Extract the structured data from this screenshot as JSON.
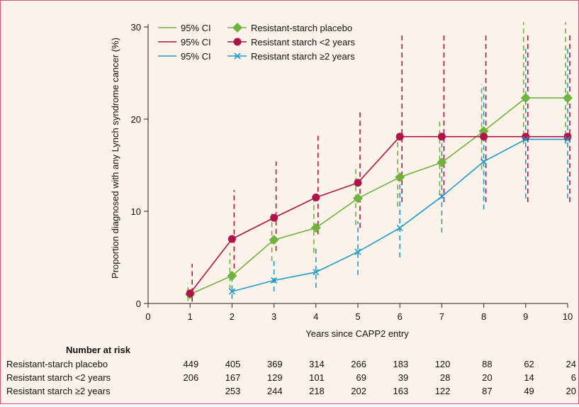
{
  "chart_data": {
    "type": "line",
    "xlabel": "Years since CAPP2 entry",
    "ylabel": "Proportion diagnosed with any Lynch syndrome cancer (%)",
    "xlim": [
      0,
      10
    ],
    "ylim": [
      0,
      30
    ],
    "x_ticks": [
      0,
      1,
      2,
      3,
      4,
      5,
      6,
      7,
      8,
      9,
      10
    ],
    "y_ticks": [
      0,
      10,
      20,
      30
    ],
    "grid": false,
    "legend_position": "top-left",
    "legend": {
      "ci_label": "95% CI"
    },
    "series": [
      {
        "name": "Resistant-starch placebo",
        "color": "#6fb23c",
        "marker": "diamond",
        "x": [
          1,
          2,
          3,
          4,
          5,
          6,
          7,
          8,
          9,
          10
        ],
        "y": [
          1.0,
          3.0,
          6.9,
          8.2,
          11.4,
          13.7,
          15.3,
          18.7,
          22.3,
          22.3
        ],
        "ci_lower": [
          0.3,
          1.5,
          4.6,
          5.5,
          8.5,
          10.5,
          11.8,
          14.5,
          17.3,
          17.3
        ],
        "ci_upper": [
          2.2,
          5.5,
          10.0,
          11.8,
          15.0,
          17.5,
          20.0,
          23.8,
          30.5,
          30.5
        ]
      },
      {
        "name": "Resistant starch <2 years",
        "color": "#b0124a",
        "marker": "circle",
        "x": [
          1,
          2,
          3,
          4,
          5,
          6,
          7,
          8,
          9,
          10
        ],
        "y": [
          1.1,
          7.0,
          9.3,
          11.5,
          13.1,
          18.1,
          18.1,
          18.1,
          18.1,
          18.1
        ],
        "ci_lower": [
          0.2,
          3.8,
          5.7,
          7.5,
          8.2,
          11.0,
          11.0,
          11.0,
          11.0,
          11.0
        ],
        "ci_upper": [
          4.3,
          12.3,
          15.4,
          18.2,
          20.8,
          29.3,
          29.3,
          29.3,
          29.3,
          29.3
        ]
      },
      {
        "name": "Resistant starch ≥2 years",
        "color": "#1f9ac9",
        "marker": "x",
        "x": [
          2,
          3,
          4,
          5,
          6,
          7,
          8,
          9,
          10
        ],
        "y": [
          1.3,
          2.5,
          3.4,
          5.6,
          8.2,
          11.6,
          15.4,
          17.8,
          17.8
        ],
        "ci_lower": [
          0.5,
          1.3,
          1.7,
          3.1,
          5.0,
          7.7,
          10.2,
          11.4,
          11.4
        ],
        "ci_upper": [
          3.2,
          4.6,
          6.0,
          8.9,
          12.9,
          17.4,
          23.5,
          28.0,
          28.0
        ]
      }
    ]
  },
  "risk_table": {
    "title": "Number at risk",
    "columns": [
      1,
      2,
      3,
      4,
      5,
      6,
      7,
      8,
      9,
      10
    ],
    "rows": [
      {
        "label": "Resistant-starch placebo",
        "values": [
          "449",
          "405",
          "369",
          "314",
          "266",
          "183",
          "120",
          "88",
          "62",
          "24"
        ]
      },
      {
        "label": "Resistant starch <2 years",
        "values": [
          "206",
          "167",
          "129",
          "101",
          "69",
          "39",
          "28",
          "20",
          "14",
          "6"
        ]
      },
      {
        "label": "Resistant starch ≥2 years",
        "values": [
          "",
          "253",
          "244",
          "218",
          "202",
          "163",
          "122",
          "87",
          "49",
          "20"
        ]
      }
    ]
  }
}
